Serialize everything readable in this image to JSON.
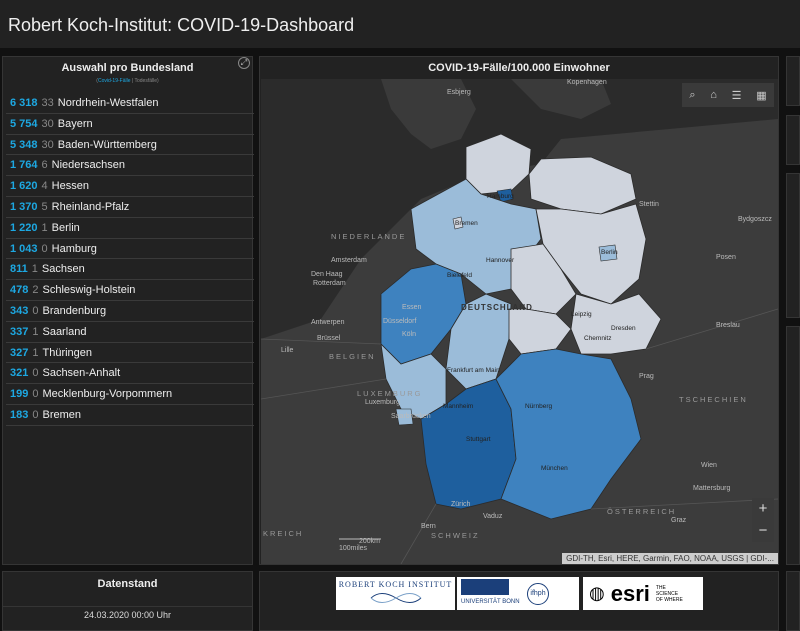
{
  "header": {
    "title": "Robert Koch-Institut: COVID-19-Dashboard"
  },
  "list": {
    "title": "Auswahl pro Bundesland",
    "tab_cases": "Covid-19-Fälle",
    "tab_sep": "|",
    "tab_deaths": "Todesfälle",
    "rows": [
      {
        "cases": "6 318",
        "deaths": "33",
        "name": "Nordrhein-Westfalen"
      },
      {
        "cases": "5 754",
        "deaths": "30",
        "name": "Bayern"
      },
      {
        "cases": "5 348",
        "deaths": "30",
        "name": "Baden-Württemberg"
      },
      {
        "cases": "1 764",
        "deaths": "6",
        "name": "Niedersachsen"
      },
      {
        "cases": "1 620",
        "deaths": "4",
        "name": "Hessen"
      },
      {
        "cases": "1 370",
        "deaths": "5",
        "name": "Rheinland-Pfalz"
      },
      {
        "cases": "1 220",
        "deaths": "1",
        "name": "Berlin"
      },
      {
        "cases": "1 043",
        "deaths": "0",
        "name": "Hamburg"
      },
      {
        "cases": "811",
        "deaths": "1",
        "name": "Sachsen"
      },
      {
        "cases": "478",
        "deaths": "2",
        "name": "Schleswig-Holstein"
      },
      {
        "cases": "343",
        "deaths": "0",
        "name": "Brandenburg"
      },
      {
        "cases": "337",
        "deaths": "1",
        "name": "Saarland"
      },
      {
        "cases": "327",
        "deaths": "1",
        "name": "Thüringen"
      },
      {
        "cases": "321",
        "deaths": "0",
        "name": "Sachsen-Anhalt"
      },
      {
        "cases": "199",
        "deaths": "0",
        "name": "Mecklenburg-Vorpommern"
      },
      {
        "cases": "183",
        "deaths": "0",
        "name": "Bremen"
      }
    ]
  },
  "map": {
    "title": "COVID-19-Fälle/100.000 Einwohner",
    "attribution": "GDI-TH, Esri, HERE, Garmin, FAO, NOAA, USGS | GDI-...",
    "scale_km": "200km",
    "scale_mi": "100miles",
    "zoom_in": "+",
    "zoom_out": "−",
    "labels": {
      "esbjerg": "Esbjerg",
      "kopenhagen": "Kopenhagen",
      "hamburg": "Hamburg",
      "bremen": "Bremen",
      "hannover": "Hannover",
      "bielefeld": "Bielefeld",
      "berlin": "Berlin",
      "stettin": "Stettin",
      "bydgoszcz": "Bydgoszcz",
      "posen": "Posen",
      "niederlande": "NIEDERLANDE",
      "amsterdam": "Amsterdam",
      "denhaag": "Den Haag",
      "rotterdam": "Rotterdam",
      "essen": "Essen",
      "duesseldorf": "Düsseldorf",
      "koeln": "Köln",
      "deutschland": "DEUTSCHLAND",
      "leipzig": "Leipzig",
      "dresden": "Dresden",
      "chemnitz": "Chemnitz",
      "breslau": "Breslau",
      "antwerpen": "Antwerpen",
      "bruessel": "Brüssel",
      "belgien": "BELGIEN",
      "lille": "Lille",
      "frankfurt": "Frankfurt am Main",
      "luxemburg_c": "LUXEMBURG",
      "luxemburg": "Luxemburg",
      "saarbruecken": "Saarbrücken",
      "mannheim": "Mannheim",
      "nuernberg": "Nürnberg",
      "prag": "Prag",
      "tschechien": "TSCHECHIEN",
      "stuttgart": "Stuttgart",
      "muenchen": "München",
      "wien": "Wien",
      "mattersburg": "Mattersburg",
      "zuerich": "Zürich",
      "vaduz": "Vaduz",
      "bern": "Bern",
      "schweiz": "SCHWEIZ",
      "oesterreich": "ÖSTERREICH",
      "graz": "Graz",
      "frankreich": "KREICH"
    }
  },
  "stand": {
    "title": "Datenstand",
    "date": "24.03.2020 00:00 Uhr"
  },
  "logos": {
    "rki": "ROBERT KOCH INSTITUT",
    "bonn": "UNIVERSITÄT BONN",
    "bonn_sub": "ifhph",
    "esri": "esri",
    "esri_tag": "THE SCIENCE OF WHERE"
  },
  "colors": {
    "accent": "#1da8e2",
    "panel": "#222222",
    "map_dark": "#1e5f9e",
    "map_mid": "#3e82bf",
    "map_light": "#9bbcd9",
    "map_pale": "#cfd4dd"
  }
}
